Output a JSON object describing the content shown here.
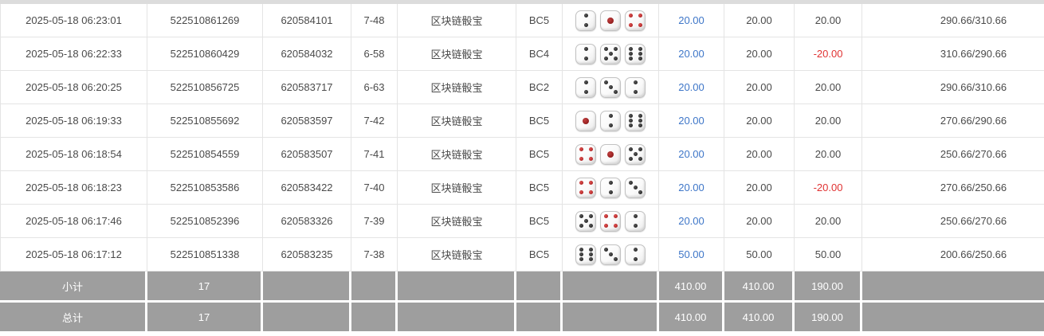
{
  "colors": {
    "accent_blue": "#3e76c8",
    "negative_red": "#e03232",
    "footer_bg": "#9e9e9e",
    "footer_text": "#ffffff",
    "row_border": "#e4e4e4",
    "top_strip": "#dcdcdc",
    "body_text": "#4a4a4a",
    "dice_red_pip": "#9c1515",
    "dice_black_pip": "#121212"
  },
  "dice_legend": {
    "red_pip_values": [
      1,
      4
    ],
    "icon_names": [
      "die-1-icon",
      "die-2-icon",
      "die-3-icon",
      "die-4-icon",
      "die-5-icon",
      "die-6-icon"
    ]
  },
  "table": {
    "rows": [
      {
        "time": "2025-05-18 06:23:01",
        "order_no": "522510861269",
        "round_no": "620584101",
        "session": "7-48",
        "game": "区块链骰宝",
        "table_code": "BC5",
        "dice": [
          2,
          1,
          4
        ],
        "bet": "20.00",
        "valid": "20.00",
        "win_loss": "20.00",
        "balance": "290.66/310.66"
      },
      {
        "time": "2025-05-18 06:22:33",
        "order_no": "522510860429",
        "round_no": "620584032",
        "session": "6-58",
        "game": "区块链骰宝",
        "table_code": "BC4",
        "dice": [
          2,
          5,
          6
        ],
        "bet": "20.00",
        "valid": "20.00",
        "win_loss": "-20.00",
        "balance": "310.66/290.66"
      },
      {
        "time": "2025-05-18 06:20:25",
        "order_no": "522510856725",
        "round_no": "620583717",
        "session": "6-63",
        "game": "区块链骰宝",
        "table_code": "BC2",
        "dice": [
          2,
          3,
          2
        ],
        "bet": "20.00",
        "valid": "20.00",
        "win_loss": "20.00",
        "balance": "290.66/310.66"
      },
      {
        "time": "2025-05-18 06:19:33",
        "order_no": "522510855692",
        "round_no": "620583597",
        "session": "7-42",
        "game": "区块链骰宝",
        "table_code": "BC5",
        "dice": [
          1,
          2,
          6
        ],
        "bet": "20.00",
        "valid": "20.00",
        "win_loss": "20.00",
        "balance": "270.66/290.66"
      },
      {
        "time": "2025-05-18 06:18:54",
        "order_no": "522510854559",
        "round_no": "620583507",
        "session": "7-41",
        "game": "区块链骰宝",
        "table_code": "BC5",
        "dice": [
          4,
          1,
          5
        ],
        "bet": "20.00",
        "valid": "20.00",
        "win_loss": "20.00",
        "balance": "250.66/270.66"
      },
      {
        "time": "2025-05-18 06:18:23",
        "order_no": "522510853586",
        "round_no": "620583422",
        "session": "7-40",
        "game": "区块链骰宝",
        "table_code": "BC5",
        "dice": [
          4,
          2,
          3
        ],
        "bet": "20.00",
        "valid": "20.00",
        "win_loss": "-20.00",
        "balance": "270.66/250.66"
      },
      {
        "time": "2025-05-18 06:17:46",
        "order_no": "522510852396",
        "round_no": "620583326",
        "session": "7-39",
        "game": "区块链骰宝",
        "table_code": "BC5",
        "dice": [
          5,
          4,
          2
        ],
        "bet": "20.00",
        "valid": "20.00",
        "win_loss": "20.00",
        "balance": "250.66/270.66"
      },
      {
        "time": "2025-05-18 06:17:12",
        "order_no": "522510851338",
        "round_no": "620583235",
        "session": "7-38",
        "game": "区块链骰宝",
        "table_code": "BC5",
        "dice": [
          6,
          3,
          2
        ],
        "bet": "50.00",
        "valid": "50.00",
        "win_loss": "50.00",
        "balance": "200.66/250.66"
      }
    ],
    "footer_rows": [
      {
        "label": "小计",
        "count": "17",
        "bet": "410.00",
        "valid": "410.00",
        "win_loss": "190.00"
      },
      {
        "label": "总计",
        "count": "17",
        "bet": "410.00",
        "valid": "410.00",
        "win_loss": "190.00"
      }
    ]
  }
}
